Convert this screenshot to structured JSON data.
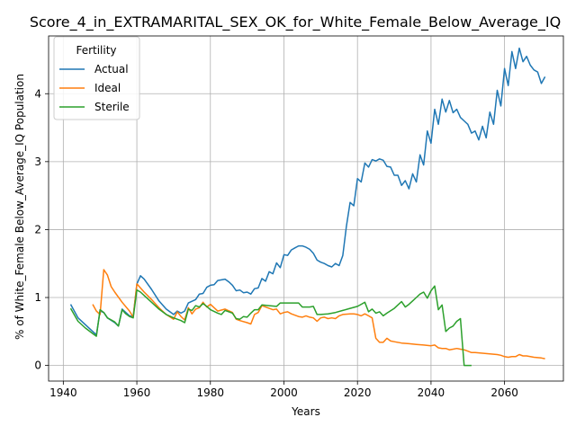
{
  "chart_data": {
    "type": "line",
    "title": "Score_4_in_EXTRAMARITAL_SEX_OK_for_White_Female_Below_Average_IQ",
    "xlabel": "Years",
    "ylabel": "% of White_Female Below_Average_IQ Population",
    "xlim": [
      1936,
      2076
    ],
    "ylim": [
      -0.23,
      4.85
    ],
    "xticks": [
      1940,
      1960,
      1980,
      2000,
      2020,
      2040,
      2060
    ],
    "yticks": [
      0,
      1,
      2,
      3,
      4
    ],
    "grid": true,
    "legend": {
      "title": "Fertility",
      "placement": "top-left"
    },
    "series": [
      {
        "name": "Actual",
        "color": "#1f77b4",
        "points": [
          [
            1942,
            0.9
          ],
          [
            1944,
            0.7
          ],
          [
            1946,
            0.6
          ],
          [
            1948,
            0.5
          ],
          [
            1949,
            0.45
          ],
          [
            1950,
            0.8
          ],
          [
            1951,
            0.78
          ],
          [
            1952,
            0.7
          ],
          [
            1954,
            0.63
          ],
          [
            1955,
            0.58
          ],
          [
            1956,
            0.83
          ],
          [
            1957,
            0.78
          ],
          [
            1958,
            0.73
          ],
          [
            1959,
            0.72
          ],
          [
            1960,
            1.2
          ],
          [
            1961,
            1.32
          ],
          [
            1962,
            1.27
          ],
          [
            1964,
            1.12
          ],
          [
            1966,
            0.95
          ],
          [
            1968,
            0.83
          ],
          [
            1970,
            0.75
          ],
          [
            1971,
            0.8
          ],
          [
            1972,
            0.77
          ],
          [
            1973,
            0.8
          ],
          [
            1974,
            0.92
          ],
          [
            1976,
            0.97
          ],
          [
            1977,
            1.05
          ],
          [
            1978,
            1.06
          ],
          [
            1979,
            1.15
          ],
          [
            1980,
            1.18
          ],
          [
            1981,
            1.19
          ],
          [
            1982,
            1.25
          ],
          [
            1984,
            1.27
          ],
          [
            1985,
            1.23
          ],
          [
            1986,
            1.18
          ],
          [
            1987,
            1.1
          ],
          [
            1988,
            1.11
          ],
          [
            1989,
            1.07
          ],
          [
            1990,
            1.08
          ],
          [
            1991,
            1.05
          ],
          [
            1992,
            1.13
          ],
          [
            1993,
            1.14
          ],
          [
            1994,
            1.28
          ],
          [
            1995,
            1.24
          ],
          [
            1996,
            1.38
          ],
          [
            1997,
            1.35
          ],
          [
            1998,
            1.51
          ],
          [
            1999,
            1.44
          ],
          [
            2000,
            1.63
          ],
          [
            2001,
            1.62
          ],
          [
            2002,
            1.7
          ],
          [
            2003,
            1.73
          ],
          [
            2004,
            1.76
          ],
          [
            2005,
            1.76
          ],
          [
            2006,
            1.74
          ],
          [
            2007,
            1.71
          ],
          [
            2008,
            1.65
          ],
          [
            2009,
            1.55
          ],
          [
            2010,
            1.52
          ],
          [
            2011,
            1.5
          ],
          [
            2012,
            1.47
          ],
          [
            2013,
            1.45
          ],
          [
            2014,
            1.5
          ],
          [
            2015,
            1.47
          ],
          [
            2016,
            1.62
          ],
          [
            2017,
            2.05
          ],
          [
            2018,
            2.4
          ],
          [
            2019,
            2.35
          ],
          [
            2020,
            2.75
          ],
          [
            2021,
            2.7
          ],
          [
            2022,
            2.98
          ],
          [
            2023,
            2.92
          ],
          [
            2024,
            3.03
          ],
          [
            2025,
            3.01
          ],
          [
            2026,
            3.04
          ],
          [
            2027,
            3.02
          ],
          [
            2028,
            2.93
          ],
          [
            2029,
            2.92
          ],
          [
            2030,
            2.8
          ],
          [
            2031,
            2.8
          ],
          [
            2032,
            2.65
          ],
          [
            2033,
            2.72
          ],
          [
            2034,
            2.6
          ],
          [
            2035,
            2.82
          ],
          [
            2036,
            2.7
          ],
          [
            2037,
            3.1
          ],
          [
            2038,
            2.95
          ],
          [
            2039,
            3.45
          ],
          [
            2040,
            3.27
          ],
          [
            2041,
            3.77
          ],
          [
            2042,
            3.55
          ],
          [
            2043,
            3.92
          ],
          [
            2044,
            3.73
          ],
          [
            2045,
            3.9
          ],
          [
            2046,
            3.72
          ],
          [
            2047,
            3.77
          ],
          [
            2048,
            3.65
          ],
          [
            2049,
            3.6
          ],
          [
            2050,
            3.55
          ],
          [
            2051,
            3.42
          ],
          [
            2052,
            3.45
          ],
          [
            2053,
            3.32
          ],
          [
            2054,
            3.52
          ],
          [
            2055,
            3.35
          ],
          [
            2056,
            3.73
          ],
          [
            2057,
            3.55
          ],
          [
            2058,
            4.05
          ],
          [
            2059,
            3.82
          ],
          [
            2060,
            4.37
          ],
          [
            2061,
            4.12
          ],
          [
            2062,
            4.62
          ],
          [
            2063,
            4.37
          ],
          [
            2064,
            4.67
          ],
          [
            2065,
            4.47
          ],
          [
            2066,
            4.55
          ],
          [
            2067,
            4.42
          ],
          [
            2068,
            4.35
          ],
          [
            2069,
            4.32
          ],
          [
            2070,
            4.15
          ],
          [
            2071,
            4.25
          ]
        ]
      },
      {
        "name": "Ideal",
        "color": "#ff7f0e",
        "points": [
          [
            1948,
            0.9
          ],
          [
            1949,
            0.8
          ],
          [
            1950,
            0.75
          ],
          [
            1951,
            1.41
          ],
          [
            1952,
            1.33
          ],
          [
            1953,
            1.16
          ],
          [
            1954,
            1.08
          ],
          [
            1956,
            0.93
          ],
          [
            1958,
            0.8
          ],
          [
            1959,
            0.71
          ],
          [
            1960,
            1.2
          ],
          [
            1961,
            1.14
          ],
          [
            1962,
            1.08
          ],
          [
            1964,
            0.97
          ],
          [
            1966,
            0.85
          ],
          [
            1968,
            0.75
          ],
          [
            1970,
            0.68
          ],
          [
            1971,
            0.79
          ],
          [
            1972,
            0.72
          ],
          [
            1973,
            0.67
          ],
          [
            1974,
            0.85
          ],
          [
            1975,
            0.76
          ],
          [
            1976,
            0.83
          ],
          [
            1977,
            0.85
          ],
          [
            1978,
            0.93
          ],
          [
            1979,
            0.86
          ],
          [
            1980,
            0.9
          ],
          [
            1982,
            0.8
          ],
          [
            1984,
            0.83
          ],
          [
            1986,
            0.78
          ],
          [
            1987,
            0.68
          ],
          [
            1988,
            0.66
          ],
          [
            1990,
            0.63
          ],
          [
            1991,
            0.61
          ],
          [
            1992,
            0.75
          ],
          [
            1993,
            0.78
          ],
          [
            1994,
            0.88
          ],
          [
            1996,
            0.84
          ],
          [
            1997,
            0.82
          ],
          [
            1998,
            0.83
          ],
          [
            1999,
            0.76
          ],
          [
            2000,
            0.78
          ],
          [
            2001,
            0.79
          ],
          [
            2002,
            0.76
          ],
          [
            2004,
            0.72
          ],
          [
            2005,
            0.71
          ],
          [
            2006,
            0.73
          ],
          [
            2007,
            0.71
          ],
          [
            2008,
            0.7
          ],
          [
            2009,
            0.65
          ],
          [
            2010,
            0.7
          ],
          [
            2011,
            0.71
          ],
          [
            2012,
            0.69
          ],
          [
            2013,
            0.7
          ],
          [
            2014,
            0.69
          ],
          [
            2015,
            0.73
          ],
          [
            2016,
            0.75
          ],
          [
            2018,
            0.76
          ],
          [
            2019,
            0.76
          ],
          [
            2020,
            0.75
          ],
          [
            2021,
            0.73
          ],
          [
            2022,
            0.76
          ],
          [
            2023,
            0.73
          ],
          [
            2024,
            0.7
          ],
          [
            2025,
            0.4
          ],
          [
            2026,
            0.34
          ],
          [
            2027,
            0.34
          ],
          [
            2028,
            0.4
          ],
          [
            2029,
            0.36
          ],
          [
            2030,
            0.35
          ],
          [
            2032,
            0.33
          ],
          [
            2034,
            0.32
          ],
          [
            2036,
            0.31
          ],
          [
            2038,
            0.3
          ],
          [
            2040,
            0.29
          ],
          [
            2041,
            0.3
          ],
          [
            2042,
            0.26
          ],
          [
            2043,
            0.25
          ],
          [
            2044,
            0.25
          ],
          [
            2045,
            0.23
          ],
          [
            2046,
            0.24
          ],
          [
            2047,
            0.25
          ],
          [
            2048,
            0.24
          ],
          [
            2049,
            0.23
          ],
          [
            2050,
            0.21
          ],
          [
            2051,
            0.19
          ],
          [
            2052,
            0.19
          ],
          [
            2054,
            0.18
          ],
          [
            2056,
            0.17
          ],
          [
            2058,
            0.16
          ],
          [
            2059,
            0.15
          ],
          [
            2060,
            0.13
          ],
          [
            2061,
            0.12
          ],
          [
            2062,
            0.13
          ],
          [
            2063,
            0.13
          ],
          [
            2064,
            0.16
          ],
          [
            2065,
            0.14
          ],
          [
            2066,
            0.14
          ],
          [
            2068,
            0.12
          ],
          [
            2070,
            0.11
          ],
          [
            2071,
            0.1
          ]
        ]
      },
      {
        "name": "Sterile",
        "color": "#2ca02c",
        "points": [
          [
            1942,
            0.84
          ],
          [
            1944,
            0.65
          ],
          [
            1946,
            0.55
          ],
          [
            1948,
            0.47
          ],
          [
            1949,
            0.43
          ],
          [
            1950,
            0.82
          ],
          [
            1951,
            0.78
          ],
          [
            1952,
            0.7
          ],
          [
            1954,
            0.64
          ],
          [
            1955,
            0.58
          ],
          [
            1956,
            0.82
          ],
          [
            1957,
            0.76
          ],
          [
            1958,
            0.72
          ],
          [
            1959,
            0.7
          ],
          [
            1960,
            1.11
          ],
          [
            1961,
            1.08
          ],
          [
            1962,
            1.03
          ],
          [
            1964,
            0.93
          ],
          [
            1966,
            0.83
          ],
          [
            1968,
            0.75
          ],
          [
            1970,
            0.7
          ],
          [
            1972,
            0.66
          ],
          [
            1973,
            0.63
          ],
          [
            1974,
            0.83
          ],
          [
            1975,
            0.81
          ],
          [
            1976,
            0.88
          ],
          [
            1977,
            0.86
          ],
          [
            1978,
            0.91
          ],
          [
            1979,
            0.87
          ],
          [
            1980,
            0.82
          ],
          [
            1982,
            0.77
          ],
          [
            1983,
            0.75
          ],
          [
            1984,
            0.81
          ],
          [
            1986,
            0.77
          ],
          [
            1987,
            0.69
          ],
          [
            1988,
            0.68
          ],
          [
            1989,
            0.72
          ],
          [
            1990,
            0.71
          ],
          [
            1991,
            0.77
          ],
          [
            1992,
            0.82
          ],
          [
            1993,
            0.82
          ],
          [
            1994,
            0.89
          ],
          [
            1996,
            0.88
          ],
          [
            1998,
            0.87
          ],
          [
            1999,
            0.92
          ],
          [
            2000,
            0.92
          ],
          [
            2001,
            0.92
          ],
          [
            2002,
            0.92
          ],
          [
            2004,
            0.92
          ],
          [
            2005,
            0.86
          ],
          [
            2006,
            0.86
          ],
          [
            2007,
            0.86
          ],
          [
            2008,
            0.87
          ],
          [
            2009,
            0.75
          ],
          [
            2010,
            0.75
          ],
          [
            2012,
            0.76
          ],
          [
            2014,
            0.78
          ],
          [
            2016,
            0.81
          ],
          [
            2018,
            0.84
          ],
          [
            2020,
            0.87
          ],
          [
            2021,
            0.9
          ],
          [
            2022,
            0.93
          ],
          [
            2023,
            0.79
          ],
          [
            2024,
            0.83
          ],
          [
            2025,
            0.77
          ],
          [
            2026,
            0.79
          ],
          [
            2027,
            0.73
          ],
          [
            2028,
            0.77
          ],
          [
            2030,
            0.84
          ],
          [
            2031,
            0.89
          ],
          [
            2032,
            0.94
          ],
          [
            2033,
            0.86
          ],
          [
            2034,
            0.9
          ],
          [
            2035,
            0.95
          ],
          [
            2036,
            1.0
          ],
          [
            2037,
            1.05
          ],
          [
            2038,
            1.08
          ],
          [
            2039,
            0.99
          ],
          [
            2040,
            1.1
          ],
          [
            2041,
            1.17
          ],
          [
            2042,
            0.82
          ],
          [
            2043,
            0.89
          ],
          [
            2044,
            0.5
          ],
          [
            2045,
            0.55
          ],
          [
            2046,
            0.58
          ],
          [
            2047,
            0.65
          ],
          [
            2048,
            0.69
          ],
          [
            2049,
            0.0
          ],
          [
            2051,
            0.0
          ]
        ]
      }
    ]
  }
}
